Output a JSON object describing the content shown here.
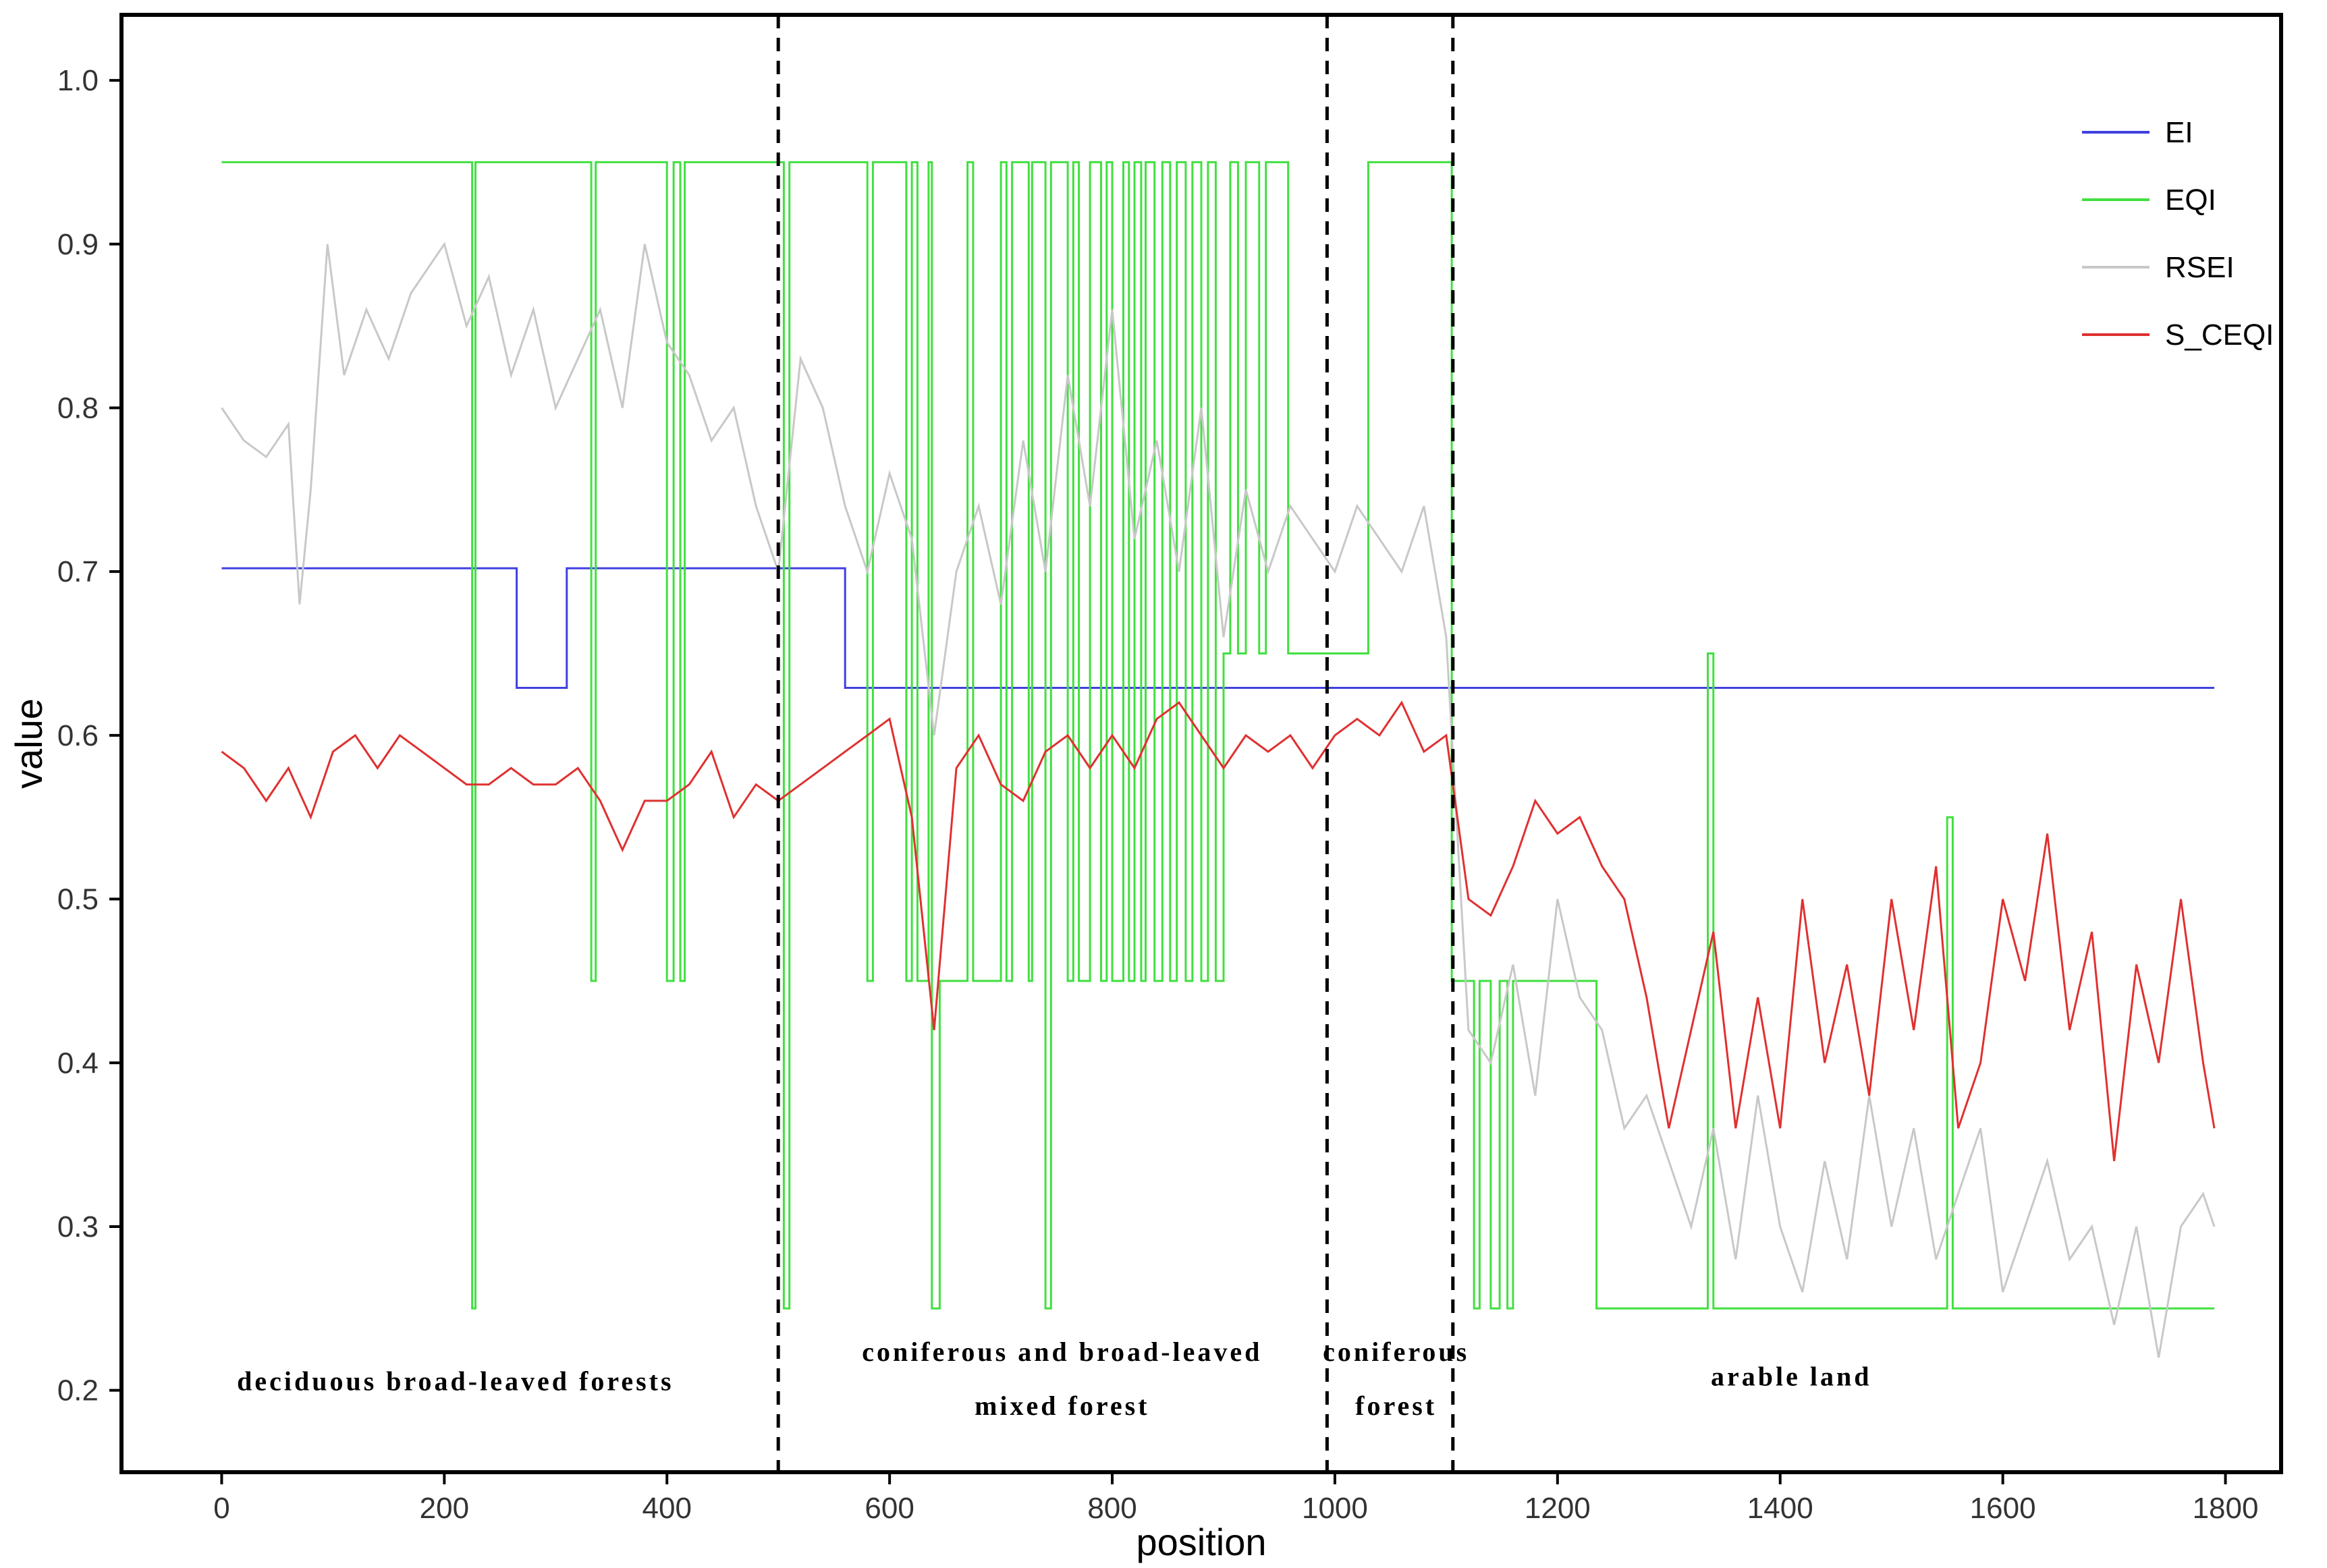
{
  "chart_data": {
    "type": "line",
    "xlabel": "position",
    "ylabel": "value",
    "xlim": [
      -90,
      1850
    ],
    "ylim": [
      0.15,
      1.04
    ],
    "x_ticks": [
      "0",
      "200",
      "400",
      "600",
      "800",
      "1000",
      "1200",
      "1400",
      "1600",
      "1800"
    ],
    "y_ticks": [
      "0.2",
      "0.3",
      "0.4",
      "0.5",
      "0.6",
      "0.7",
      "0.8",
      "0.9",
      "1.0"
    ],
    "grid": false,
    "legend_position": "top-right",
    "region_boundaries": [
      500,
      993,
      1106
    ],
    "region_labels": [
      {
        "lines": [
          "deciduous broad-leaved forests"
        ],
        "x": 210,
        "y": 0.2
      },
      {
        "lines": [
          "coniferous and broad-leaved",
          "mixed forest"
        ],
        "x": 755,
        "y": 0.218
      },
      {
        "lines": [
          "coniferous",
          "forest"
        ],
        "x": 1055,
        "y": 0.218
      },
      {
        "lines": [
          "arable land"
        ],
        "x": 1410,
        "y": 0.203
      }
    ],
    "series": [
      {
        "name": "EI",
        "color": "#4040e0",
        "step": true,
        "x": [
          0,
          265,
          310,
          560,
          1790
        ],
        "y": [
          0.702,
          0.629,
          0.702,
          0.629,
          0.629
        ]
      },
      {
        "name": "EQI",
        "color": "#40e040",
        "step": true,
        "x": [
          0,
          225,
          228,
          332,
          336,
          400,
          406,
          412,
          416,
          500,
          505,
          510,
          575,
          580,
          585,
          610,
          615,
          620,
          625,
          635,
          638,
          645,
          670,
          675,
          700,
          705,
          710,
          725,
          728,
          740,
          745,
          760,
          765,
          770,
          780,
          790,
          795,
          800,
          810,
          815,
          820,
          826,
          830,
          838,
          845,
          852,
          858,
          866,
          872,
          880,
          886,
          893,
          900,
          906,
          913,
          920,
          932,
          938,
          958,
          963,
          1030,
          1036,
          1105,
          1108,
          1125,
          1130,
          1140,
          1148,
          1155,
          1160,
          1230,
          1235,
          1240,
          1335,
          1340,
          1345,
          1550,
          1555,
          1560,
          1790
        ],
        "y": [
          0.95,
          0.25,
          0.95,
          0.45,
          0.95,
          0.45,
          0.95,
          0.45,
          0.95,
          0.95,
          0.25,
          0.95,
          0.95,
          0.45,
          0.95,
          0.95,
          0.45,
          0.95,
          0.45,
          0.95,
          0.25,
          0.45,
          0.95,
          0.45,
          0.95,
          0.45,
          0.95,
          0.45,
          0.95,
          0.25,
          0.95,
          0.45,
          0.95,
          0.45,
          0.95,
          0.45,
          0.95,
          0.45,
          0.95,
          0.45,
          0.95,
          0.45,
          0.95,
          0.45,
          0.95,
          0.45,
          0.95,
          0.45,
          0.95,
          0.45,
          0.95,
          0.45,
          0.65,
          0.95,
          0.65,
          0.95,
          0.65,
          0.95,
          0.65,
          0.65,
          0.95,
          0.95,
          0.45,
          0.45,
          0.25,
          0.45,
          0.25,
          0.45,
          0.25,
          0.45,
          0.45,
          0.25,
          0.25,
          0.65,
          0.25,
          0.25,
          0.55,
          0.25,
          0.25,
          0.25
        ]
      },
      {
        "name": "RSEI",
        "color": "#c8c8c8",
        "step": false,
        "x": [
          0,
          20,
          40,
          60,
          70,
          80,
          95,
          110,
          130,
          150,
          170,
          200,
          220,
          240,
          260,
          280,
          300,
          320,
          340,
          360,
          380,
          400,
          420,
          440,
          460,
          480,
          500,
          520,
          540,
          560,
          580,
          600,
          620,
          640,
          660,
          680,
          700,
          720,
          740,
          760,
          780,
          800,
          820,
          840,
          860,
          880,
          900,
          920,
          940,
          960,
          980,
          1000,
          1020,
          1040,
          1060,
          1080,
          1100,
          1120,
          1140,
          1160,
          1180,
          1200,
          1220,
          1240,
          1260,
          1280,
          1300,
          1320,
          1340,
          1360,
          1380,
          1400,
          1420,
          1440,
          1460,
          1480,
          1500,
          1520,
          1540,
          1560,
          1580,
          1600,
          1620,
          1640,
          1660,
          1680,
          1700,
          1720,
          1740,
          1760,
          1780,
          1790
        ],
        "y": [
          0.8,
          0.78,
          0.77,
          0.79,
          0.68,
          0.75,
          0.9,
          0.82,
          0.86,
          0.83,
          0.87,
          0.9,
          0.85,
          0.88,
          0.82,
          0.86,
          0.8,
          0.83,
          0.86,
          0.8,
          0.9,
          0.84,
          0.82,
          0.78,
          0.8,
          0.74,
          0.7,
          0.83,
          0.8,
          0.74,
          0.7,
          0.76,
          0.72,
          0.6,
          0.7,
          0.74,
          0.68,
          0.78,
          0.7,
          0.82,
          0.74,
          0.86,
          0.72,
          0.78,
          0.7,
          0.8,
          0.66,
          0.75,
          0.7,
          0.74,
          0.72,
          0.7,
          0.74,
          0.72,
          0.7,
          0.74,
          0.66,
          0.42,
          0.4,
          0.46,
          0.38,
          0.5,
          0.44,
          0.42,
          0.36,
          0.38,
          0.34,
          0.3,
          0.36,
          0.28,
          0.38,
          0.3,
          0.26,
          0.34,
          0.28,
          0.38,
          0.3,
          0.36,
          0.28,
          0.32,
          0.36,
          0.26,
          0.3,
          0.34,
          0.28,
          0.3,
          0.24,
          0.3,
          0.22,
          0.3,
          0.32,
          0.3
        ]
      },
      {
        "name": "S_CEQI",
        "color": "#e03030",
        "step": false,
        "x": [
          0,
          20,
          40,
          60,
          80,
          100,
          120,
          140,
          160,
          180,
          200,
          220,
          240,
          260,
          280,
          300,
          320,
          340,
          360,
          380,
          400,
          420,
          440,
          460,
          480,
          500,
          520,
          540,
          560,
          580,
          600,
          620,
          640,
          660,
          680,
          700,
          720,
          740,
          760,
          780,
          800,
          820,
          840,
          860,
          880,
          900,
          920,
          940,
          960,
          980,
          1000,
          1020,
          1040,
          1060,
          1080,
          1100,
          1120,
          1140,
          1160,
          1180,
          1200,
          1220,
          1240,
          1260,
          1280,
          1300,
          1320,
          1340,
          1360,
          1380,
          1400,
          1420,
          1440,
          1460,
          1480,
          1500,
          1520,
          1540,
          1560,
          1580,
          1600,
          1620,
          1640,
          1660,
          1680,
          1700,
          1720,
          1740,
          1760,
          1780,
          1790
        ],
        "y": [
          0.59,
          0.58,
          0.56,
          0.58,
          0.55,
          0.59,
          0.6,
          0.58,
          0.6,
          0.59,
          0.58,
          0.57,
          0.57,
          0.58,
          0.57,
          0.57,
          0.58,
          0.56,
          0.53,
          0.56,
          0.56,
          0.57,
          0.59,
          0.55,
          0.57,
          0.56,
          0.57,
          0.58,
          0.59,
          0.6,
          0.61,
          0.55,
          0.42,
          0.58,
          0.6,
          0.57,
          0.56,
          0.59,
          0.6,
          0.58,
          0.6,
          0.58,
          0.61,
          0.62,
          0.6,
          0.58,
          0.6,
          0.59,
          0.6,
          0.58,
          0.6,
          0.61,
          0.6,
          0.62,
          0.59,
          0.6,
          0.5,
          0.49,
          0.52,
          0.56,
          0.54,
          0.55,
          0.52,
          0.5,
          0.44,
          0.36,
          0.42,
          0.48,
          0.36,
          0.44,
          0.36,
          0.5,
          0.4,
          0.46,
          0.38,
          0.5,
          0.42,
          0.52,
          0.36,
          0.4,
          0.5,
          0.45,
          0.54,
          0.42,
          0.48,
          0.34,
          0.46,
          0.4,
          0.5,
          0.4,
          0.36
        ]
      }
    ]
  }
}
